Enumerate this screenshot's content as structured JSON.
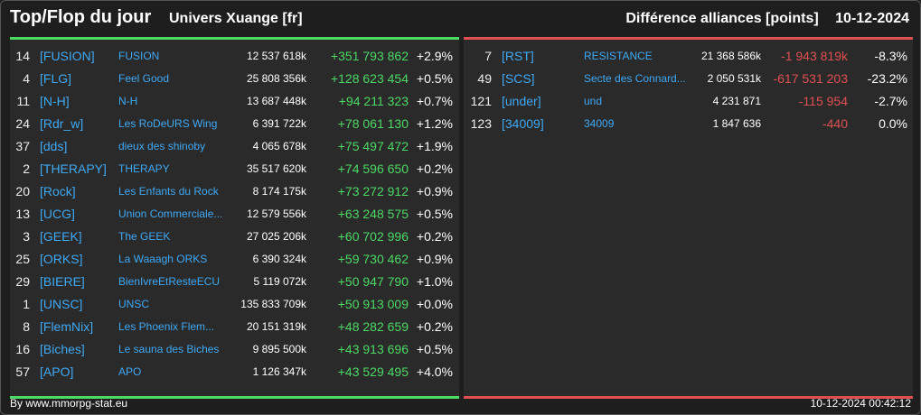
{
  "header": {
    "title": "Top/Flop du jour",
    "universe": "Univers Xuange [fr]",
    "metric": "Différence alliances [points]",
    "date": "10-12-2024"
  },
  "colors": {
    "positive": "#4cd964",
    "negative": "#e05050",
    "link": "#3fa9f5"
  },
  "top": [
    {
      "rank": "14",
      "tag": "[FUSION]",
      "name": "FUSION",
      "points": "12 537 618k",
      "diff": "+351 793 862",
      "pct": "+2.9%"
    },
    {
      "rank": "4",
      "tag": "[FLG]",
      "name": "Feel Good",
      "points": "25 808 356k",
      "diff": "+128 623 454",
      "pct": "+0.5%"
    },
    {
      "rank": "11",
      "tag": "[N-H]",
      "name": "N-H",
      "points": "13 687 448k",
      "diff": "+94 211 323",
      "pct": "+0.7%"
    },
    {
      "rank": "24",
      "tag": "[Rdr_w]",
      "name": "Les RoDeURS Wing",
      "points": "6 391 722k",
      "diff": "+78 061 130",
      "pct": "+1.2%"
    },
    {
      "rank": "37",
      "tag": "[dds]",
      "name": "dieux des shinoby",
      "points": "4 065 678k",
      "diff": "+75 497 472",
      "pct": "+1.9%"
    },
    {
      "rank": "2",
      "tag": "[THERAPY]",
      "name": "THERAPY",
      "points": "35 517 620k",
      "diff": "+74 596 650",
      "pct": "+0.2%"
    },
    {
      "rank": "20",
      "tag": "[Rock]",
      "name": "Les Enfants du Rock",
      "points": "8 174 175k",
      "diff": "+73 272 912",
      "pct": "+0.9%"
    },
    {
      "rank": "13",
      "tag": "[UCG]",
      "name": "Union Commerciale...",
      "points": "12 579 556k",
      "diff": "+63 248 575",
      "pct": "+0.5%"
    },
    {
      "rank": "3",
      "tag": "[GEEK]",
      "name": "The GEEK",
      "points": "27 025 206k",
      "diff": "+60 702 996",
      "pct": "+0.2%"
    },
    {
      "rank": "25",
      "tag": "[ORKS]",
      "name": "La Waaagh ORKS",
      "points": "6 390 324k",
      "diff": "+59 730 462",
      "pct": "+0.9%"
    },
    {
      "rank": "29",
      "tag": "[BIERE]",
      "name": "BienIvreEtResteECU",
      "points": "5 119 072k",
      "diff": "+50 947 790",
      "pct": "+1.0%"
    },
    {
      "rank": "1",
      "tag": "[UNSC]",
      "name": "UNSC",
      "points": "135 833 709k",
      "diff": "+50 913 009",
      "pct": "+0.0%"
    },
    {
      "rank": "8",
      "tag": "[FlemNix]",
      "name": "Les Phoenix Flem...",
      "points": "20 151 319k",
      "diff": "+48 282 659",
      "pct": "+0.2%"
    },
    {
      "rank": "16",
      "tag": "[Biches]",
      "name": "Le sauna des Biches",
      "points": "9 895 500k",
      "diff": "+43 913 696",
      "pct": "+0.5%"
    },
    {
      "rank": "57",
      "tag": "[APO]",
      "name": "APO",
      "points": "1 126 347k",
      "diff": "+43 529 495",
      "pct": "+4.0%"
    }
  ],
  "flop": [
    {
      "rank": "7",
      "tag": "[RST]",
      "name": "RESISTANCE",
      "points": "21 368 586k",
      "diff": "-1 943 819k",
      "pct": "-8.3%"
    },
    {
      "rank": "49",
      "tag": "[SCS]",
      "name": "Secte des Connard...",
      "points": "2 050 531k",
      "diff": "-617 531 203",
      "pct": "-23.2%"
    },
    {
      "rank": "121",
      "tag": "[under]",
      "name": "und",
      "points": "4 231 871",
      "diff": "-115 954",
      "pct": "-2.7%"
    },
    {
      "rank": "123",
      "tag": "[34009]",
      "name": "34009",
      "points": "1 847 636",
      "diff": "-440",
      "pct": "0.0%"
    }
  ],
  "footer": {
    "source": "By www.mmorpg-stat.eu",
    "timestamp": "10-12-2024 00:42:12"
  }
}
